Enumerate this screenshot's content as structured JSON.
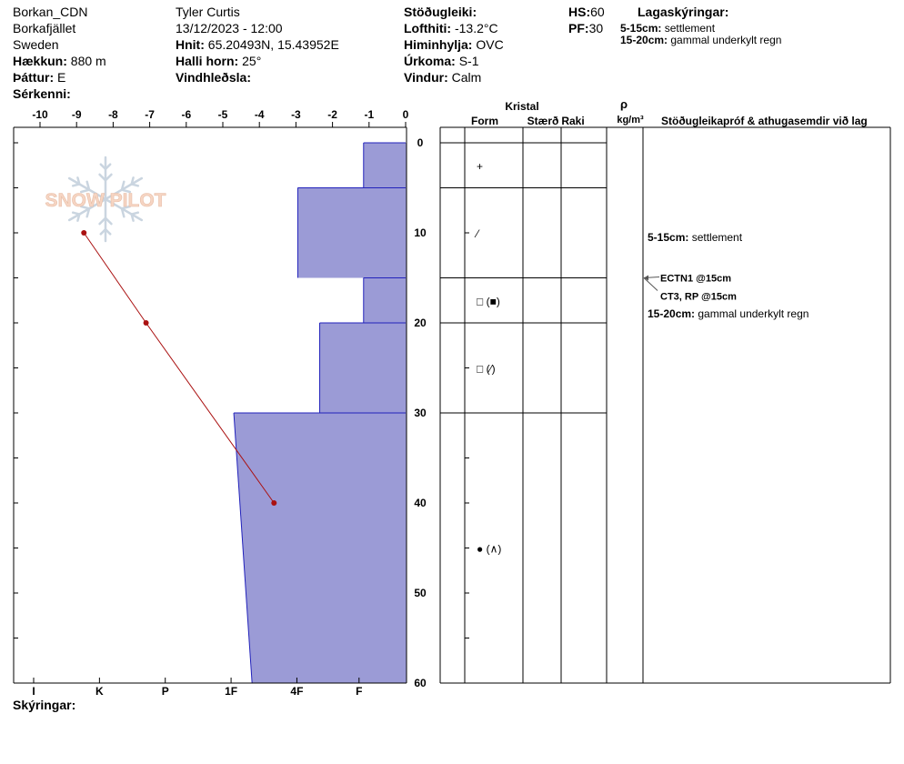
{
  "header": {
    "location": "Borkan_CDN",
    "area": "Borkafjället",
    "country": "Sweden",
    "elevation_label": "Hækkun:",
    "elevation": "880 m",
    "aspect_label": "Þáttur:",
    "aspect": "E",
    "features_label": "Sérkenni:",
    "observer": "Tyler Curtis",
    "datetime": "13/12/2023 - 12:00",
    "coords_label": "Hnit:",
    "coords": "65.20493N, 15.43952E",
    "slope_label": "Halli horn:",
    "slope": "25°",
    "wind_loading_label": "Vindhleðsla:",
    "stability_label": "Stöðugleiki:",
    "air_temp_label": "Lofthiti:",
    "air_temp": "-13.2°C",
    "sky_label": "Himinhylja:",
    "sky": "OVC",
    "precip_label": "Úrkoma:",
    "precip": "S-1",
    "wind_label": "Vindur:",
    "wind": "Calm",
    "hs_label": "HS:",
    "hs": "60",
    "pf_label": "PF:",
    "pf": "30",
    "layer_notes_title": "Lagaskýringar:",
    "layer_notes": [
      {
        "range": "5-15cm:",
        "text": "settlement"
      },
      {
        "range": "15-20cm:",
        "text": "gammal underkylt regn"
      }
    ]
  },
  "columns": {
    "kristal": "Kristal",
    "form": "Form",
    "size": "Stærð",
    "moisture": "Raki",
    "rho": "ρ",
    "density_unit": "kg/m³",
    "tests": "Stöðugleikapróf & athugasemdir við lag"
  },
  "footer": {
    "legend_label": "Skýringar:"
  },
  "crystals": [
    {
      "depth": 2.5,
      "symbol": "+"
    },
    {
      "depth": 10,
      "symbol": "⁄"
    },
    {
      "depth": 17.5,
      "symbol": "□ (■)"
    },
    {
      "depth": 25,
      "symbol": "□ (⁄)"
    },
    {
      "depth": 45,
      "symbol": "● (∧)"
    }
  ],
  "layer_boundaries": [
    0,
    5,
    15,
    20,
    30
  ],
  "annotations": [
    {
      "depth": 10.5,
      "range": "5-15cm:",
      "text": "settlement"
    },
    {
      "depth": 19,
      "range": "15-20cm:",
      "text": "gammal underkylt regn"
    }
  ],
  "tests": [
    {
      "depth": 15,
      "text": "ECTN1 @15cm"
    },
    {
      "depth": 15,
      "text": "CT3, RP @15cm"
    }
  ],
  "chart_data": {
    "type": "area",
    "title": "",
    "x_axis": {
      "label": "",
      "range": [
        -10,
        0
      ],
      "ticks": [
        -10,
        -9,
        -8,
        -7,
        -6,
        -5,
        -4,
        -3,
        -2,
        -1,
        0
      ]
    },
    "y_axis": {
      "label": "",
      "range": [
        0,
        60
      ],
      "ticks": [
        0,
        10,
        20,
        30,
        40,
        50,
        60
      ],
      "inverted": true
    },
    "hardness_axis": {
      "labels": [
        "I",
        "K",
        "P",
        "1F",
        "4F",
        "F"
      ],
      "positions": [
        -10,
        -8.2,
        -6.4,
        -4.6,
        -2.8,
        -1.1
      ]
    },
    "hardness_profile": [
      {
        "top": 0,
        "bottom": 5,
        "x_top": -1.15,
        "x_bottom": -1.15
      },
      {
        "top": 5,
        "bottom": 15,
        "x_top": -2.95,
        "x_bottom": -2.95
      },
      {
        "top": 15,
        "bottom": 20,
        "x_top": -1.15,
        "x_bottom": -1.15
      },
      {
        "top": 20,
        "bottom": 30,
        "x_top": -2.35,
        "x_bottom": -2.35
      },
      {
        "top": 30,
        "bottom": 60,
        "x_top": -4.7,
        "x_bottom": -4.2
      }
    ],
    "temperature_profile": [
      {
        "depth": 10,
        "temp": -8.8
      },
      {
        "depth": 20,
        "temp": -7.1
      },
      {
        "depth": 40,
        "temp": -3.6
      }
    ],
    "colors": {
      "hardness_fill": "#9b9bd6",
      "hardness_stroke": "#2222bb",
      "temperature": "#aa1111"
    }
  }
}
